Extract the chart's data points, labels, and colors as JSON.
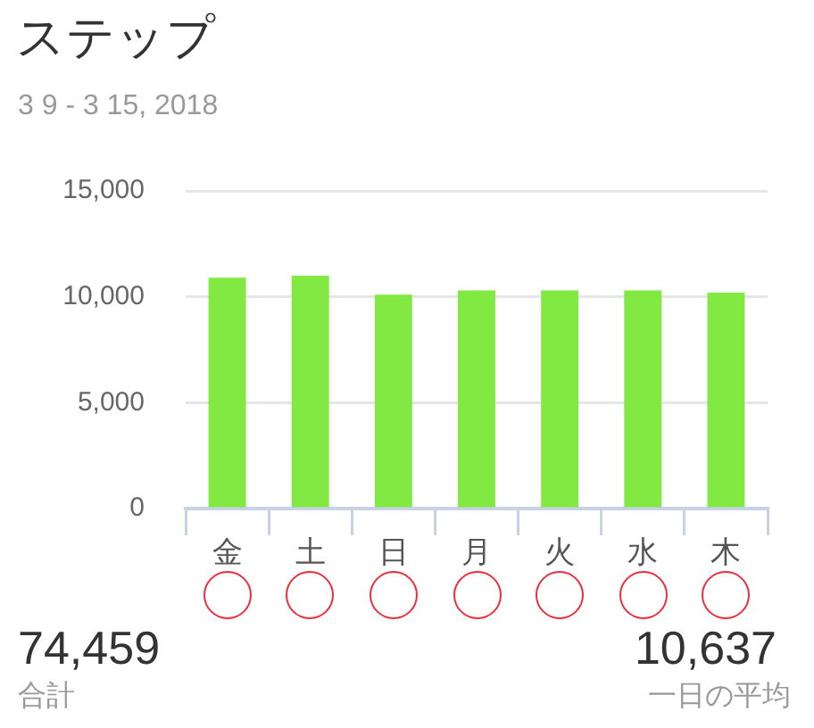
{
  "chart_data": {
    "type": "bar",
    "title": "ステップ",
    "subtitle": "3 9 - 3 15, 2018",
    "categories": [
      "金",
      "土",
      "日",
      "月",
      "火",
      "水",
      "木"
    ],
    "values": [
      10900,
      11000,
      10100,
      10300,
      10300,
      10300,
      10200
    ],
    "color": "#82e842",
    "ylim": [
      0,
      15000
    ],
    "yticks": [
      0,
      {
        "value": 5000,
        "label": "5,000"
      },
      {
        "value": 10000,
        "label": "10,000"
      },
      {
        "value": 15000,
        "label": "15,000"
      }
    ],
    "grid": "y",
    "annotations": [
      "74,459",
      "合計",
      "10,637",
      "一日の平均"
    ]
  }
}
